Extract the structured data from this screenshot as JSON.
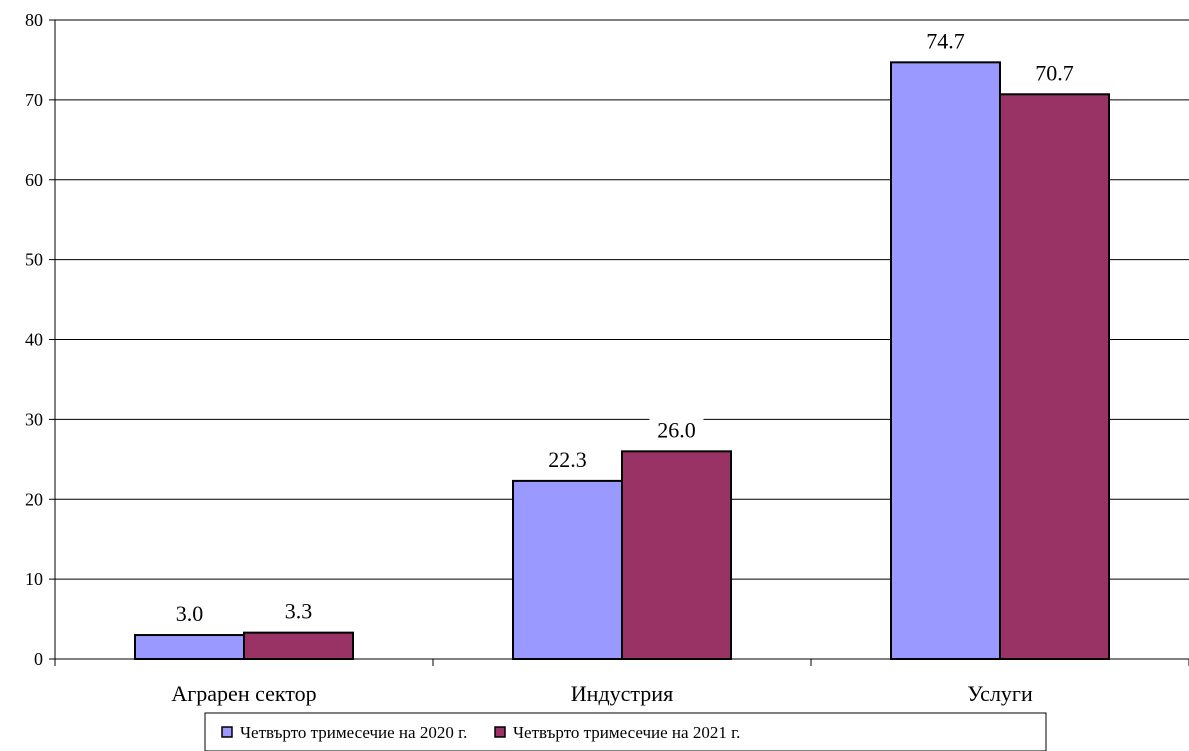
{
  "chart_data": {
    "type": "bar",
    "categories": [
      "Аграрен сектор",
      "Индустрия",
      "Услуги"
    ],
    "series": [
      {
        "name": "Четвърто тримесечие на 2020 г.",
        "values": [
          3.0,
          22.3,
          74.7
        ],
        "color": "#9999ff"
      },
      {
        "name": "Четвърто тримесечие на 2021 г.",
        "values": [
          3.3,
          26.0,
          70.7
        ],
        "color": "#993366"
      }
    ],
    "value_labels": [
      [
        "3.0",
        "22.3",
        "74.7"
      ],
      [
        "3.3",
        "26.0",
        "70.7"
      ]
    ],
    "ylim": [
      0,
      80
    ],
    "yticks": [
      0,
      10,
      20,
      30,
      40,
      50,
      60,
      70,
      80
    ],
    "grid": true,
    "legend_position": "bottom"
  }
}
